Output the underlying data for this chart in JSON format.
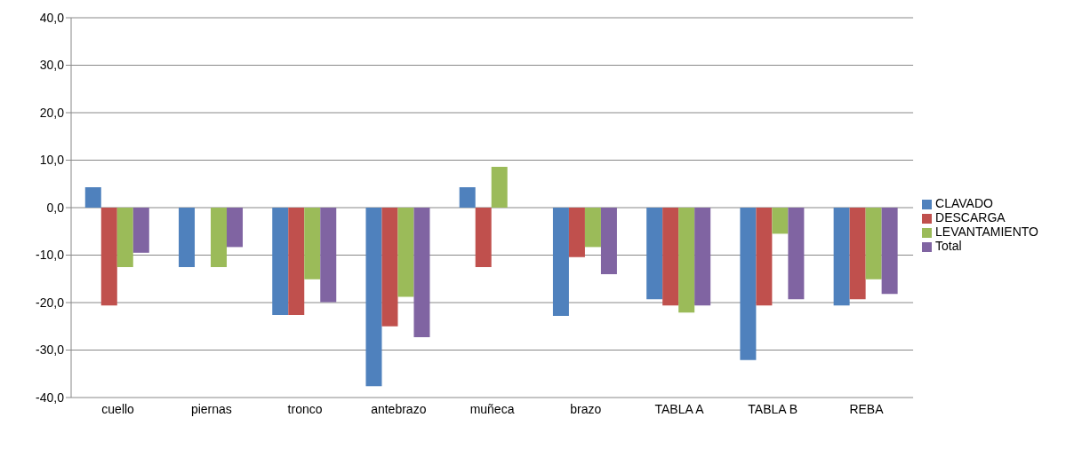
{
  "chart_data": {
    "type": "bar",
    "categories": [
      "cuello",
      "piernas",
      "tronco",
      "antebrazo",
      "muñeca",
      "brazo",
      "TABLA A",
      "TABLA B",
      "REBA"
    ],
    "series": [
      {
        "name": "CLAVADO",
        "color": "#4f81bd",
        "values": [
          4.3,
          -12.5,
          -22.6,
          -37.6,
          4.3,
          -22.8,
          -19.3,
          -32.1,
          -20.6
        ]
      },
      {
        "name": "DESCARGA",
        "color": "#c0504d",
        "values": [
          -20.6,
          null,
          -22.6,
          -25.0,
          -12.5,
          -10.4,
          -20.6,
          -20.6,
          -19.3
        ]
      },
      {
        "name": "LEVANTAMIENTO",
        "color": "#9bbb59",
        "values": [
          -12.5,
          -12.5,
          -15.1,
          -18.8,
          8.6,
          -8.3,
          -22.1,
          -5.5,
          -15.1
        ]
      },
      {
        "name": "Total",
        "color": "#8064a2",
        "values": [
          -9.5,
          -8.3,
          -19.9,
          -27.3,
          null,
          -14.0,
          -20.6,
          -19.3,
          -18.2
        ]
      }
    ],
    "ylim": [
      -40,
      40
    ],
    "yticks": [
      {
        "value": -40,
        "label": "-40,0"
      },
      {
        "value": -30,
        "label": "-30,0"
      },
      {
        "value": -20,
        "label": "-20,0"
      },
      {
        "value": -10,
        "label": "-10,0"
      },
      {
        "value": 0,
        "label": "0,0"
      },
      {
        "value": 10,
        "label": "10,0"
      },
      {
        "value": 20,
        "label": "20,0"
      },
      {
        "value": 30,
        "label": "30,0"
      },
      {
        "value": 40,
        "label": "40,0"
      }
    ],
    "grid": "y",
    "legend": "right"
  }
}
